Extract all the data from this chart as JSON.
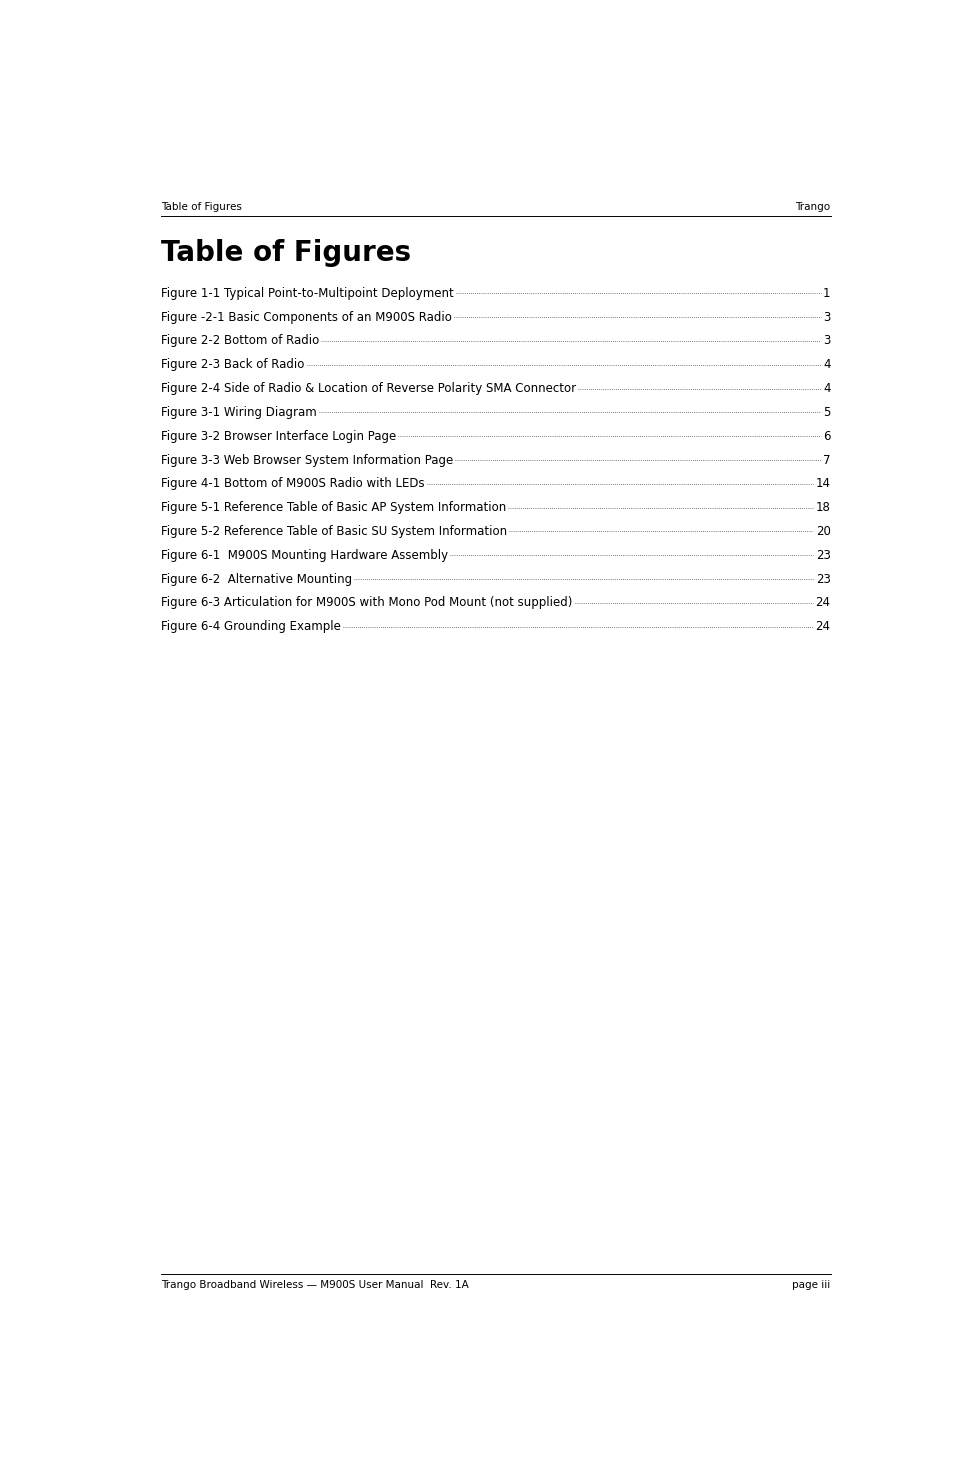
{
  "header_left": "Table of Figures",
  "header_right": "Trango",
  "footer_left": "Trango Broadband Wireless — M900S User Manual  Rev. 1A",
  "footer_right": "page iii",
  "title": "Table of Figures",
  "entries": [
    {
      "label": "Figure 1-1 Typical Point-to-Multipoint Deployment",
      "page": "1"
    },
    {
      "label": "Figure -2-1 Basic Components of an M900S Radio",
      "page": "3"
    },
    {
      "label": "Figure 2-2 Bottom of Radio",
      "page": "3"
    },
    {
      "label": "Figure 2-3 Back of Radio",
      "page": "4"
    },
    {
      "label": "Figure 2-4 Side of Radio & Location of Reverse Polarity SMA Connector",
      "page": "4"
    },
    {
      "label": "Figure 3-1 Wiring Diagram",
      "page": "5"
    },
    {
      "label": "Figure 3-2 Browser Interface Login Page",
      "page": "6"
    },
    {
      "label": "Figure 3-3 Web Browser System Information Page",
      "page": "7"
    },
    {
      "label": "Figure 4-1 Bottom of M900S Radio with LEDs",
      "page": "14"
    },
    {
      "label": "Figure 5-1 Reference Table of Basic AP System Information",
      "page": "18"
    },
    {
      "label": "Figure 5-2 Reference Table of Basic SU System Information",
      "page": "20"
    },
    {
      "label": "Figure 6-1  M900S Mounting Hardware Assembly",
      "page": "23"
    },
    {
      "label": "Figure 6-2  Alternative Mounting",
      "page": "23"
    },
    {
      "label": "Figure 6-3 Articulation for M900S with Mono Pod Mount (not supplied)",
      "page": "24"
    },
    {
      "label": "Figure 6-4 Grounding Example",
      "page": "24"
    }
  ],
  "bg_color": "#ffffff",
  "text_color": "#000000",
  "header_fontsize": 7.5,
  "title_fontsize": 20,
  "entry_fontsize": 8.5,
  "footer_fontsize": 7.5
}
